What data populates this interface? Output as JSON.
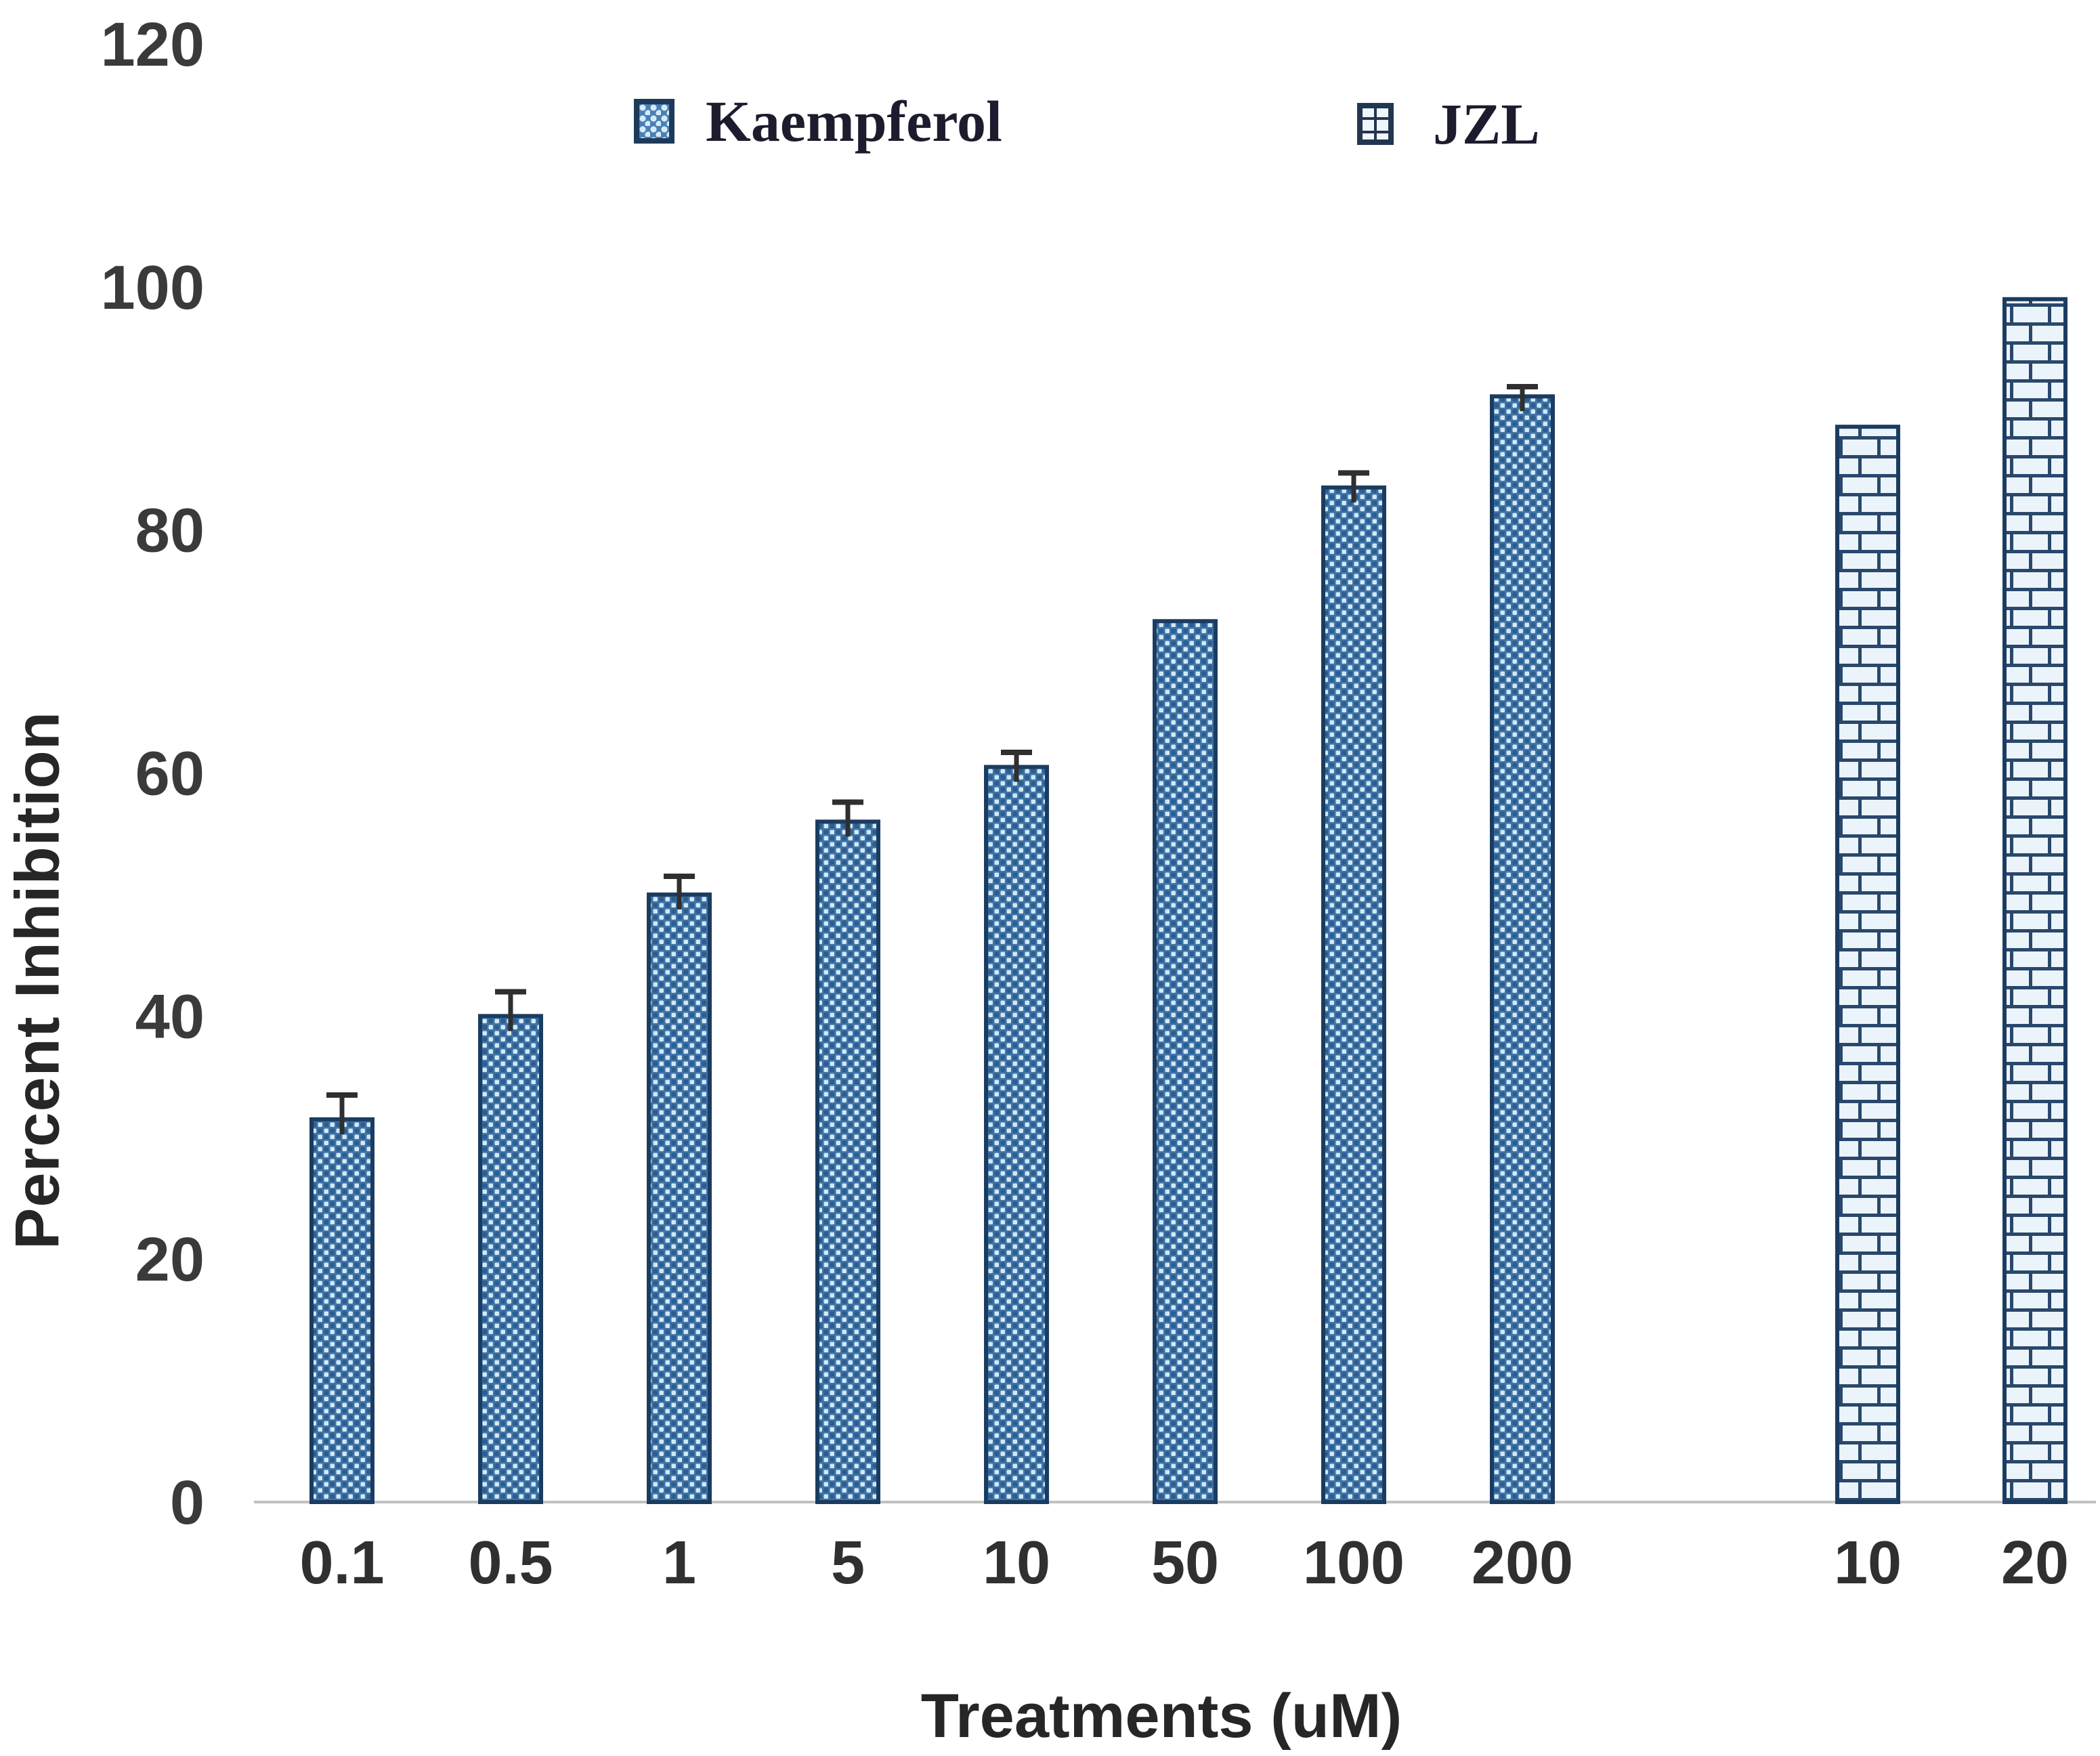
{
  "page": {
    "background": "#ffffff"
  },
  "legend": {
    "items": [
      {
        "label": "Kaempferol",
        "pattern": "checker-dots"
      },
      {
        "label": "JZL",
        "pattern": "brick"
      }
    ]
  },
  "axes": {
    "x_title": "Treatments (uM)",
    "y_title": "Percent Inhibition"
  },
  "chart_data": {
    "type": "bar",
    "title": "",
    "xlabel": "Treatments (uM)",
    "ylabel": "Percent Inhibition",
    "ylim": [
      0,
      120
    ],
    "yticks": [
      0,
      20,
      40,
      60,
      80,
      100,
      120
    ],
    "grid": false,
    "legend_position": "top",
    "groups": [
      {
        "name": "Kaempferol",
        "pattern": "checker-dots",
        "categories": [
          "0.1",
          "0.5",
          "1",
          "5",
          "10",
          "50",
          "100",
          "200"
        ],
        "values": [
          31.5,
          40,
          50,
          56,
          60.5,
          72.5,
          83.5,
          91
        ],
        "errors": [
          2,
          2,
          1.5,
          1.6,
          1.2,
          0,
          1.2,
          0.8
        ]
      },
      {
        "name": "JZL",
        "pattern": "brick",
        "categories": [
          "10",
          "20"
        ],
        "values": [
          88.5,
          99
        ],
        "errors": [
          0,
          0
        ]
      }
    ],
    "colors": {
      "bar_fill": "#3f74a7",
      "bar_dot": "#d2e8f8",
      "bar_outline": "#1b3c61",
      "brick_fill": "#ecf4fb",
      "brick_line": "#29486b",
      "error_bar": "#2f2f2f",
      "axis_line": "#c1c1c1",
      "text": "#262626"
    }
  }
}
